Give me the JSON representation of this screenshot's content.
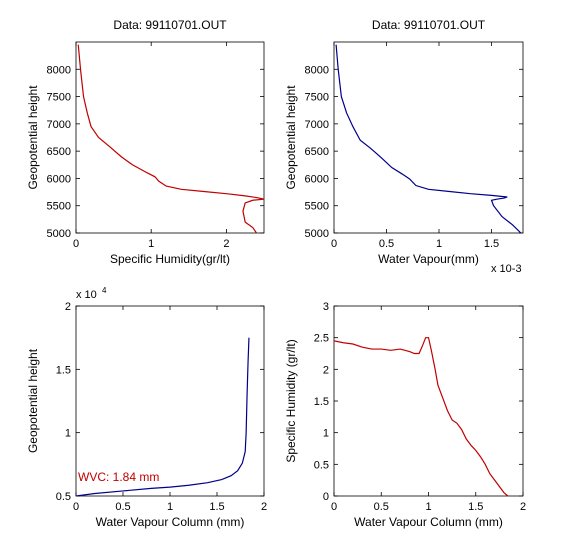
{
  "colors": {
    "red": "#c00000",
    "blue": "#00008b",
    "axis": "#000000",
    "background": "#ffffff"
  },
  "chart_data": [
    {
      "type": "line",
      "title": "Data: 99110701.OUT",
      "xlabel": "Specific Humidity(gr/lt)",
      "ylabel": "Geopotential height",
      "xlim": [
        0,
        2.5
      ],
      "ylim": [
        5000,
        8500
      ],
      "xticks": [
        0,
        1,
        2
      ],
      "yticks": [
        5000,
        5500,
        6000,
        6500,
        7000,
        7500,
        8000
      ],
      "color": "#c00000",
      "x": [
        0.03,
        0.06,
        0.1,
        0.15,
        0.2,
        0.3,
        0.45,
        0.6,
        0.75,
        0.95,
        1.05,
        1.1,
        1.2,
        1.4,
        1.7,
        2.0,
        2.25,
        2.4,
        2.5,
        2.35,
        2.25,
        2.22,
        2.25,
        2.35,
        2.4
      ],
      "y": [
        8450,
        8000,
        7500,
        7200,
        6950,
        6750,
        6580,
        6400,
        6250,
        6100,
        6030,
        5950,
        5860,
        5800,
        5760,
        5720,
        5680,
        5650,
        5620,
        5600,
        5550,
        5400,
        5200,
        5100,
        5000
      ]
    },
    {
      "type": "line",
      "title": "Data: 99110701.OUT",
      "xlabel": "Water Vapour(mm)",
      "ylabel": "Geopotential height",
      "x_multiplier": "x 10-3",
      "xlim": [
        0,
        1.8
      ],
      "ylim": [
        5000,
        8500
      ],
      "xticks": [
        0,
        0.5,
        1,
        1.5
      ],
      "yticks": [
        5000,
        5500,
        6000,
        6500,
        7000,
        7500,
        8000
      ],
      "color": "#00008b",
      "x": [
        0.02,
        0.04,
        0.07,
        0.12,
        0.18,
        0.25,
        0.35,
        0.45,
        0.55,
        0.65,
        0.72,
        0.78,
        0.9,
        1.1,
        1.3,
        1.5,
        1.65,
        1.62,
        1.55,
        1.5,
        1.52,
        1.6,
        1.7,
        1.78
      ],
      "y": [
        8450,
        8000,
        7500,
        7200,
        6950,
        6700,
        6550,
        6380,
        6200,
        6080,
        5990,
        5870,
        5800,
        5760,
        5720,
        5690,
        5660,
        5640,
        5620,
        5600,
        5500,
        5300,
        5150,
        5000
      ]
    },
    {
      "type": "line",
      "title": "",
      "xlabel": "Water Vapour Column (mm)",
      "ylabel": "Geopotential height",
      "y_multiplier": "x 10",
      "y_multiplier_exp": "4",
      "annotation": "WVC: 1.84 mm",
      "xlim": [
        0,
        2
      ],
      "ylim": [
        0.5,
        2
      ],
      "xticks": [
        0,
        0.5,
        1,
        1.5,
        2
      ],
      "yticks": [
        0.5,
        1,
        1.5,
        2
      ],
      "color": "#00008b",
      "x": [
        0,
        0.2,
        0.5,
        0.8,
        1.0,
        1.2,
        1.4,
        1.55,
        1.65,
        1.72,
        1.77,
        1.8,
        1.81,
        1.82,
        1.83,
        1.84
      ],
      "y": [
        0.5,
        0.52,
        0.54,
        0.56,
        0.57,
        0.585,
        0.605,
        0.63,
        0.66,
        0.7,
        0.76,
        0.85,
        1.0,
        1.3,
        1.55,
        1.75
      ]
    },
    {
      "type": "line",
      "title": "",
      "xlabel": "Water Vapour Column (mm)",
      "ylabel": "Specific Humidity (gr/lt)",
      "xlim": [
        0,
        2
      ],
      "ylim": [
        0,
        3
      ],
      "xticks": [
        0,
        0.5,
        1,
        1.5,
        2
      ],
      "yticks": [
        0,
        0.5,
        1,
        1.5,
        2,
        2.5,
        3
      ],
      "color": "#c00000",
      "x": [
        0,
        0.1,
        0.2,
        0.3,
        0.4,
        0.5,
        0.6,
        0.7,
        0.8,
        0.85,
        0.9,
        0.93,
        0.97,
        1.0,
        1.03,
        1.07,
        1.1,
        1.15,
        1.2,
        1.25,
        1.3,
        1.35,
        1.4,
        1.45,
        1.5,
        1.55,
        1.6,
        1.65,
        1.7,
        1.75,
        1.8,
        1.84
      ],
      "y": [
        2.45,
        2.42,
        2.4,
        2.35,
        2.32,
        2.32,
        2.3,
        2.32,
        2.28,
        2.25,
        2.25,
        2.35,
        2.5,
        2.5,
        2.3,
        2.0,
        1.75,
        1.55,
        1.35,
        1.2,
        1.15,
        1.05,
        0.9,
        0.8,
        0.72,
        0.62,
        0.5,
        0.35,
        0.25,
        0.15,
        0.05,
        0
      ]
    }
  ]
}
